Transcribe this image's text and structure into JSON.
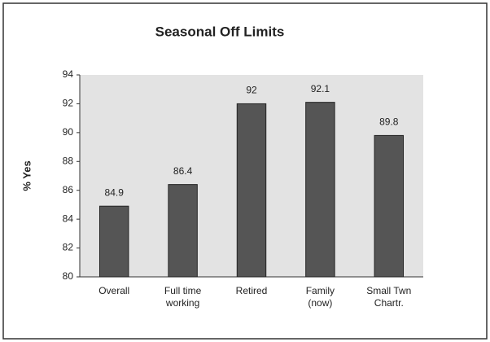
{
  "chart_data": {
    "type": "bar",
    "title": "Seasonal Off Limits",
    "y_label": "% Yes",
    "categories": [
      "Overall",
      "Full time\nworking",
      "Retired",
      "Family\n(now)",
      "Small Twn\nChartr."
    ],
    "values": [
      84.9,
      86.4,
      92,
      92.1,
      89.8
    ],
    "color": "#555555",
    "ylim": [
      80,
      94
    ],
    "yticks": [
      80,
      82,
      84,
      86,
      88,
      90,
      92,
      94
    ],
    "grid": false
  }
}
